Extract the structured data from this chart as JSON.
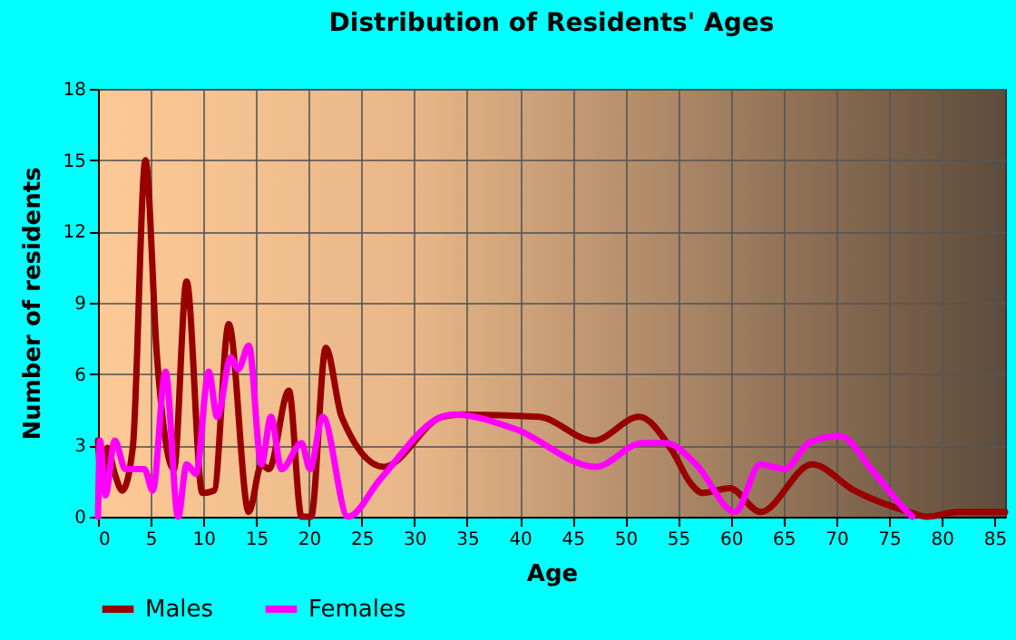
{
  "chart_data": {
    "type": "line",
    "title": "Distribution of Residents' Ages",
    "xlabel": "Age",
    "ylabel": "Number of residents",
    "xlim": [
      0,
      86
    ],
    "xticks": [
      0,
      5,
      10,
      15,
      20,
      25,
      30,
      35,
      40,
      45,
      50,
      55,
      60,
      65,
      70,
      75,
      80,
      85
    ],
    "ylim": [
      0,
      18
    ],
    "yticks": [
      0,
      3,
      6,
      9,
      12,
      15,
      18
    ],
    "grid": true,
    "legend": "bottom",
    "marker": "none",
    "line_style": "solid",
    "series": [
      {
        "name": "Males",
        "color": "#990000",
        "x": [
          0,
          0.4,
          0.9,
          1.6,
          2.3,
          3.3,
          4.5,
          5.6,
          7.2,
          8.4,
          9.9,
          11,
          12.4,
          14.3,
          15.5,
          16.2,
          18.1,
          19.3,
          20.2,
          21.6,
          23.1,
          27.1,
          32.6,
          34.3,
          41.8,
          47,
          51.3,
          54.4,
          56.2,
          57.3,
          59.9,
          62.8,
          67.7,
          71.7,
          76.9,
          78.6,
          81.5,
          86
        ],
        "values": [
          3.2,
          1.3,
          2.9,
          1.8,
          1.1,
          2.9,
          15,
          6.7,
          2,
          9.9,
          1,
          1.1,
          8.1,
          0.2,
          2.2,
          2,
          5.3,
          0,
          0,
          7.1,
          4.2,
          2.1,
          4.2,
          4.3,
          4.2,
          3.2,
          4.2,
          2.8,
          1.4,
          1,
          1.2,
          0.2,
          2.2,
          1.1,
          0.2,
          0,
          0.2,
          0.2
        ]
      },
      {
        "name": "Females",
        "color": "#ff00ff",
        "x": [
          0,
          0.2,
          0.7,
          1.6,
          2.6,
          4.4,
          5.2,
          6.4,
          7.6,
          8.4,
          9.3,
          10.5,
          11.3,
          12.6,
          13.3,
          14.3,
          15.5,
          16.4,
          17.4,
          19.3,
          20.1,
          21.3,
          23.7,
          26.8,
          32.6,
          33.7,
          39.5,
          47.2,
          51.6,
          53.9,
          56.7,
          60.4,
          62.8,
          65.1,
          67.4,
          70.3,
          73.5,
          76.3,
          77.2
        ],
        "values": [
          0,
          3.2,
          0.9,
          3.2,
          2,
          2,
          1.1,
          6.1,
          0,
          2.2,
          1.8,
          6.1,
          4.2,
          6.7,
          6.2,
          7.2,
          2.2,
          4.2,
          2,
          3.1,
          2,
          4.2,
          0,
          1.6,
          4.2,
          4.3,
          3.7,
          2.1,
          3.1,
          3.1,
          2.2,
          0.2,
          2.2,
          2,
          3.1,
          3.4,
          1.9,
          0.4,
          0
        ]
      }
    ]
  }
}
